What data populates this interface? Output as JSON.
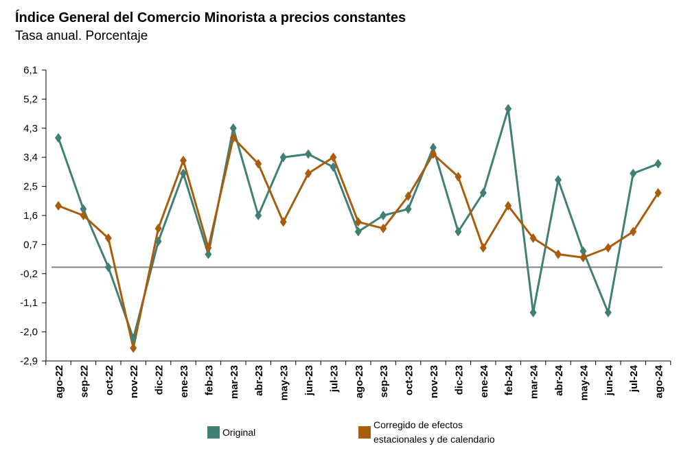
{
  "title": "Índice General del Comercio Minorista a precios constantes",
  "subtitle": "Tasa anual. Porcentaje",
  "colors": {
    "original": "#3f7f74",
    "corregido": "#a85c0c",
    "zero_line": "#808080",
    "axis": "#000000"
  },
  "legend": {
    "original": "Original",
    "corregido_line1": "Corregido de efectos",
    "corregido_line2": "estacionales y de calendario"
  },
  "chart_data": {
    "type": "line",
    "title": "Índice General del Comercio Minorista a precios constantes",
    "subtitle": "Tasa anual. Porcentaje",
    "categories": [
      "ago-22",
      "sep-22",
      "oct-22",
      "nov-22",
      "dic-22",
      "ene-23",
      "feb-23",
      "mar-23",
      "abr-23",
      "may-23",
      "jun-23",
      "jul-23",
      "ago-23",
      "sep-23",
      "oct-23",
      "nov-23",
      "dic-23",
      "ene-24",
      "feb-24",
      "mar-24",
      "abr-24",
      "may-24",
      "jun-24",
      "jul-24",
      "ago-24"
    ],
    "yticks": [
      "6,1",
      "5,2",
      "4,3",
      "3,4",
      "2,5",
      "1,6",
      "0,7",
      "-0,2",
      "-1,1",
      "-2,0",
      "-2,9"
    ],
    "ylim": [
      -2.9,
      6.1
    ],
    "grid": false,
    "legend_position": "bottom",
    "series": [
      {
        "name": "Original",
        "color": "#3f7f74",
        "values": [
          4.0,
          1.8,
          0.0,
          -2.2,
          0.8,
          2.9,
          0.4,
          4.3,
          1.6,
          3.4,
          3.5,
          3.1,
          1.1,
          1.6,
          1.8,
          3.7,
          1.1,
          2.3,
          4.9,
          -1.4,
          2.7,
          0.5,
          -1.4,
          2.9,
          3.2
        ]
      },
      {
        "name": "Corregido de efectos estacionales y de calendario",
        "color": "#a85c0c",
        "values": [
          1.9,
          1.6,
          0.9,
          -2.5,
          1.2,
          3.3,
          0.6,
          4.0,
          3.2,
          1.4,
          2.9,
          3.4,
          1.4,
          1.2,
          2.2,
          3.5,
          2.8,
          0.6,
          1.9,
          0.9,
          0.4,
          0.3,
          0.6,
          1.1,
          2.3
        ]
      }
    ]
  }
}
